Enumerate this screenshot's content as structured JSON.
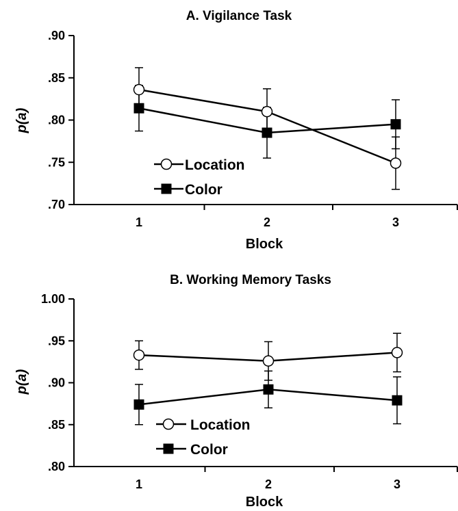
{
  "chart_data": [
    {
      "type": "line",
      "title": "A.  Vigilance Task",
      "xlabel": "Block",
      "ylabel_prefix": "p(",
      "ylabel_var": "a",
      "ylabel_suffix": ")",
      "categories": [
        "1",
        "2",
        "3"
      ],
      "ylim": [
        0.7,
        0.9
      ],
      "yticks": [
        0.7,
        0.75,
        0.8,
        0.85,
        0.9
      ],
      "ytick_labels": [
        ".70",
        ".75",
        ".80",
        ".85",
        ".90"
      ],
      "legend": "lower-left",
      "series": [
        {
          "name": "Location",
          "marker": "open-circle",
          "values": [
            0.836,
            0.81,
            0.749
          ],
          "error": [
            0.026,
            0.027,
            0.031
          ]
        },
        {
          "name": "Color",
          "marker": "filled-square",
          "values": [
            0.814,
            0.785,
            0.795
          ],
          "error": [
            0.027,
            0.03,
            0.029
          ]
        }
      ]
    },
    {
      "type": "line",
      "title": "B.  Working Memory Tasks",
      "xlabel": "Block",
      "ylabel_prefix": "p(",
      "ylabel_var": "a",
      "ylabel_suffix": ")",
      "categories": [
        "1",
        "2",
        "3"
      ],
      "ylim": [
        0.8,
        1.0
      ],
      "yticks": [
        0.8,
        0.85,
        0.9,
        0.95,
        1.0
      ],
      "ytick_labels": [
        ".80",
        ".85",
        ".90",
        ".95",
        "1.00"
      ],
      "legend": "lower-left",
      "series": [
        {
          "name": "Location",
          "marker": "open-circle",
          "values": [
            0.933,
            0.926,
            0.936
          ],
          "error": [
            0.017,
            0.023,
            0.023
          ]
        },
        {
          "name": "Color",
          "marker": "filled-square",
          "values": [
            0.874,
            0.892,
            0.879
          ],
          "error": [
            0.024,
            0.022,
            0.028
          ]
        }
      ]
    }
  ]
}
